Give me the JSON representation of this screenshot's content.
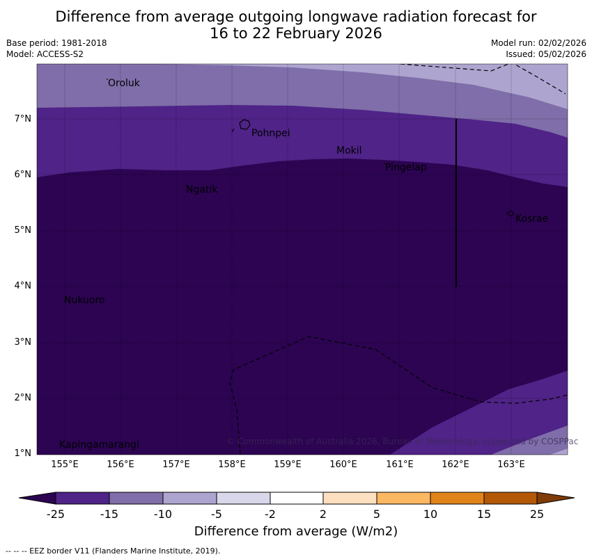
{
  "title_line1": "Difference from average outgoing longwave radiation forecast for",
  "title_line2": "16 to 22 February 2026",
  "base_period": "Base period: 1981-2018",
  "model": "Model: ACCESS-S2",
  "model_run": "Model run: 02/02/2026",
  "issued": "Issued: 05/02/2026",
  "lat_labels": [
    "7°N",
    "6°N",
    "5°N",
    "4°N",
    "3°N",
    "2°N",
    "1°N"
  ],
  "lon_labels": [
    "155°E",
    "156°E",
    "157°E",
    "158°E",
    "159°E",
    "160°E",
    "161°E",
    "162°E",
    "163°E"
  ],
  "places": {
    "oroluk": "Oroluk",
    "pohnpei": "Pohnpei",
    "mokil": "Mokil",
    "pingelap": "Pingelap",
    "ngatik": "Ngatik",
    "kosrae": "Kosrae",
    "nukuoro": "Nukuoro",
    "kapingamarangi": "Kapingamarangi"
  },
  "copyright": "© Commonwealth of Australia 2026, Bureau of Meteorology, supported by COSPPac",
  "colorbar": {
    "ticks": [
      "-25",
      "-15",
      "-10",
      "-5",
      "-2",
      "2",
      "5",
      "10",
      "15",
      "25"
    ],
    "colors": [
      "#4f2387",
      "#7f6ea9",
      "#ada5cf",
      "#d8d8ea",
      "#ffffff",
      "#fde0c0",
      "#fbb762",
      "#e0841a",
      "#b35806"
    ],
    "under_color": "#2c0452",
    "over_color": "#7f3b08",
    "label": "Difference from average (W/m2)"
  },
  "eez_note": "--  --  -- EEZ border V11 (Flanders Marine Institute, 2019)."
}
